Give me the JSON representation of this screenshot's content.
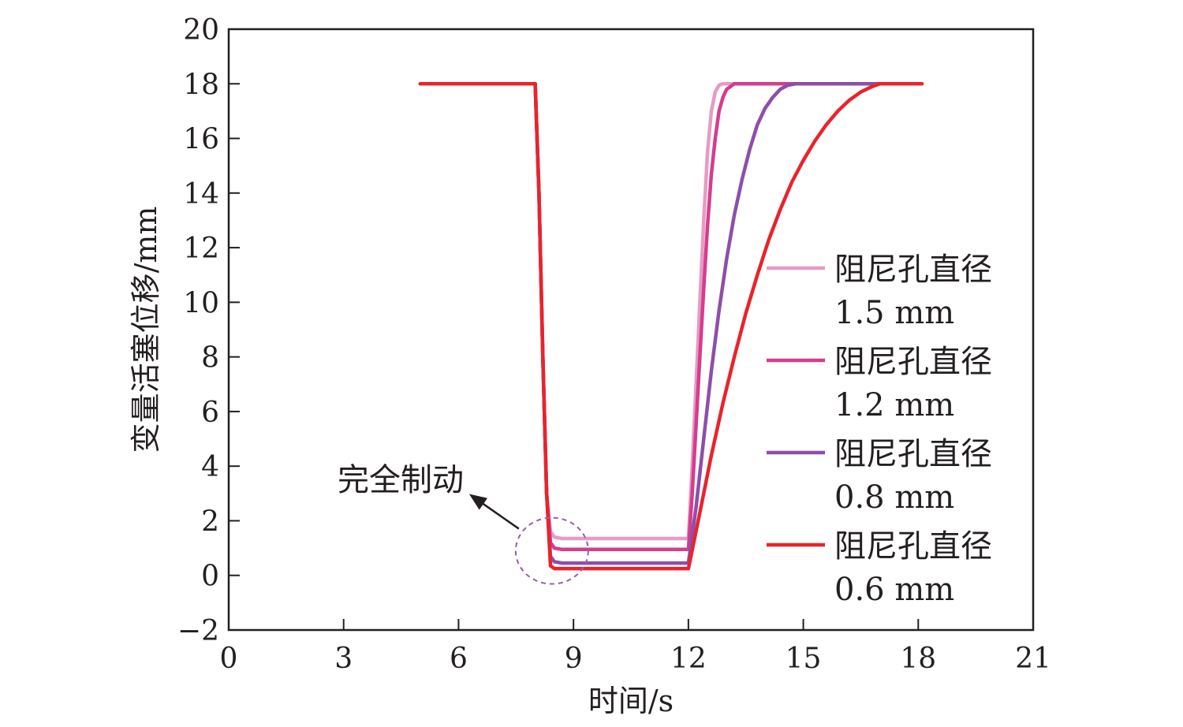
{
  "chart_data": {
    "type": "line",
    "xlabel": "时间/s",
    "ylabel": "变量活塞位移/mm",
    "xlim": [
      0,
      21
    ],
    "ylim": [
      -2,
      20
    ],
    "xticks": [
      0,
      3,
      6,
      9,
      12,
      15,
      18,
      21
    ],
    "yticks": [
      -2,
      0,
      2,
      4,
      6,
      8,
      10,
      12,
      14,
      16,
      18,
      20
    ],
    "xtick_labels": [
      "0",
      "3",
      "6",
      "9",
      "12",
      "15",
      "18",
      "21"
    ],
    "ytick_labels": [
      "−2",
      "0",
      "2",
      "4",
      "6",
      "8",
      "10",
      "12",
      "14",
      "16",
      "18",
      "20"
    ],
    "grid": false,
    "legend_position": "right",
    "series": [
      {
        "name_line1": "阻尼孔直径",
        "name_line2": "1.5 mm",
        "color": "#e79ac4",
        "x": [
          5,
          8.0,
          8.1,
          8.2,
          8.3,
          8.4,
          8.5,
          8.7,
          12.0,
          12.1,
          12.2,
          12.3,
          12.4,
          12.5,
          12.6,
          12.7,
          12.8,
          12.9,
          18
        ],
        "y": [
          18,
          18,
          14,
          8,
          3,
          1.6,
          1.4,
          1.35,
          1.35,
          4,
          7,
          10,
          13,
          15.5,
          17.0,
          17.7,
          17.95,
          18,
          18
        ]
      },
      {
        "name_line1": "阻尼孔直径",
        "name_line2": "1.2 mm",
        "color": "#d43d8e",
        "x": [
          5,
          8.0,
          8.1,
          8.2,
          8.3,
          8.4,
          8.5,
          8.7,
          12.0,
          12.1,
          12.2,
          12.3,
          12.4,
          12.5,
          12.6,
          12.7,
          12.8,
          12.9,
          13.0,
          13.2,
          18
        ],
        "y": [
          18,
          18,
          14,
          8,
          3,
          1.2,
          1.0,
          0.95,
          0.95,
          3,
          5.5,
          8,
          10.5,
          12.8,
          14.7,
          16.0,
          17.0,
          17.5,
          17.8,
          18,
          18
        ]
      },
      {
        "name_line1": "阻尼孔直径",
        "name_line2": "0.8 mm",
        "color": "#8d4fa8",
        "x": [
          5,
          8.0,
          8.1,
          8.2,
          8.3,
          8.4,
          8.5,
          8.7,
          12.0,
          12.2,
          12.4,
          12.6,
          12.8,
          13.0,
          13.2,
          13.4,
          13.6,
          13.8,
          14.0,
          14.2,
          14.4,
          14.6,
          14.8,
          18
        ],
        "y": [
          18,
          18,
          14,
          8,
          3,
          0.7,
          0.5,
          0.45,
          0.45,
          2.5,
          5,
          7.5,
          9.7,
          11.6,
          13.2,
          14.5,
          15.6,
          16.5,
          17.1,
          17.5,
          17.8,
          17.95,
          18,
          18
        ]
      },
      {
        "name_line1": "阻尼孔直径",
        "name_line2": "0.6 mm",
        "color": "#e8242b",
        "x": [
          5,
          8.0,
          8.1,
          8.2,
          8.3,
          8.4,
          8.5,
          8.7,
          12.0,
          12.3,
          12.6,
          12.9,
          13.2,
          13.5,
          13.8,
          14.1,
          14.4,
          14.7,
          15.0,
          15.3,
          15.6,
          15.9,
          16.2,
          16.5,
          16.8,
          17.0,
          18.1
        ],
        "y": [
          18,
          18,
          14,
          8,
          3,
          0.35,
          0.25,
          0.25,
          0.25,
          2.3,
          4.4,
          6.3,
          8.0,
          9.6,
          11.0,
          12.3,
          13.4,
          14.4,
          15.2,
          15.9,
          16.5,
          17.0,
          17.4,
          17.7,
          17.9,
          18,
          18
        ]
      }
    ],
    "annotations": [
      {
        "text": "完全制动",
        "target_x": 8.5,
        "target_y": 0.9
      }
    ]
  }
}
